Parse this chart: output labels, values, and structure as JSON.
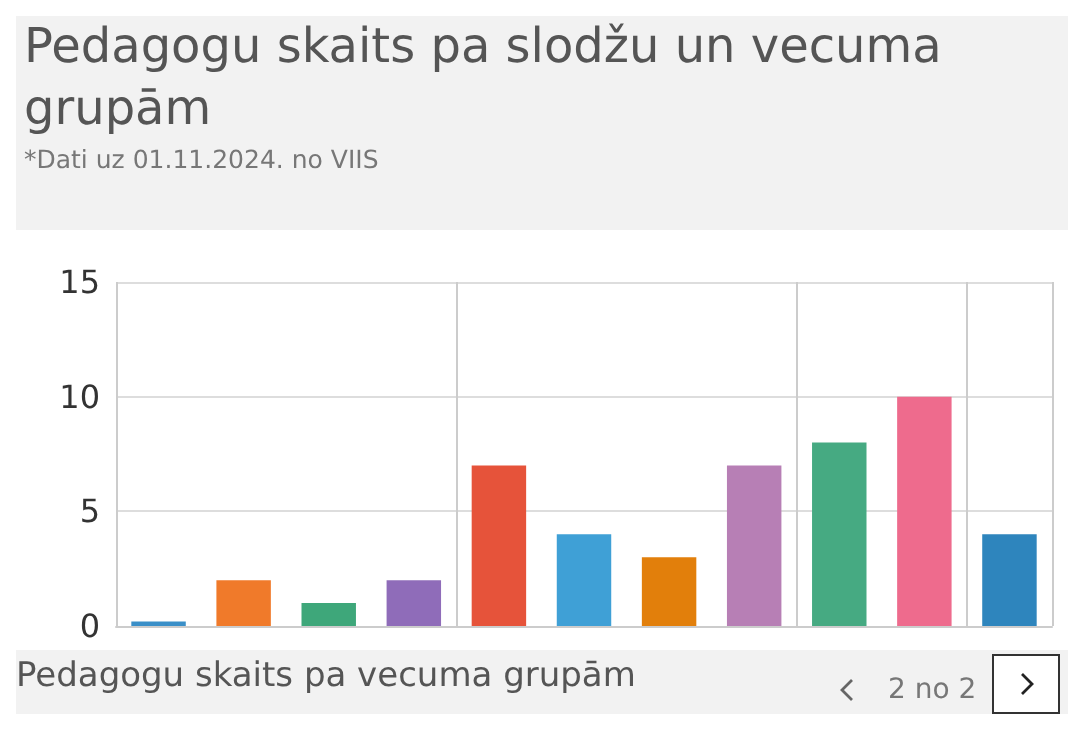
{
  "chart_data": {
    "type": "bar",
    "title": "Pedagogu skaits pa slodžu un vecuma grupām",
    "subtitle": "*Dati uz 01.11.2024. no VIIS",
    "categories": [
      null,
      null,
      null,
      null,
      null,
      null,
      null,
      null,
      null,
      null,
      null
    ],
    "values": [
      0.2,
      2,
      1,
      2,
      7,
      4,
      3,
      7,
      8,
      10,
      4
    ],
    "colors": [
      "#3a8fc8",
      "#f07a2a",
      "#3ea77a",
      "#8f6cb9",
      "#e6533a",
      "#3fa0d6",
      "#e27f0b",
      "#b77fb5",
      "#46aa82",
      "#ee6b8d",
      "#2e85bd"
    ],
    "ylim": [
      0,
      15
    ],
    "yticks": [
      0,
      5,
      10,
      15
    ],
    "grid": true,
    "annotations": [
      "Pedagogu skaits pa vecuma grupām",
      "2 no 2"
    ]
  }
}
